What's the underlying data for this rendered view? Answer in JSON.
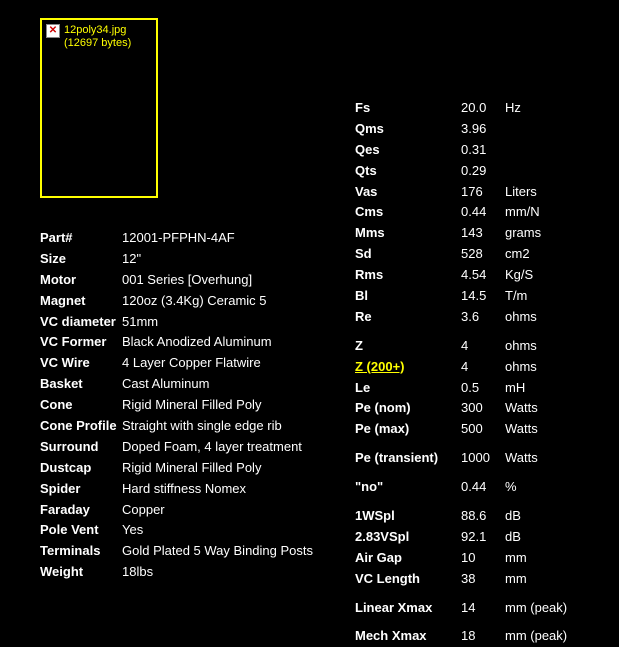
{
  "image": {
    "filename": "12poly34.jpg",
    "size_text": "(12697 bytes)"
  },
  "specs_left": [
    {
      "label": "Part#",
      "value": "12001-PFPHN-4AF"
    },
    {
      "label": "Size",
      "value": "12\""
    },
    {
      "label": "Motor",
      "value": "001 Series [Overhung]"
    },
    {
      "label": "Magnet",
      "value": "120oz (3.4Kg) Ceramic 5"
    },
    {
      "label": "VC diameter",
      "value": "51mm",
      "wrap_label": true
    },
    {
      "label": "VC Former",
      "value": "Black Anodized Aluminum"
    },
    {
      "label": "VC Wire",
      "value": "4 Layer Copper Flatwire"
    },
    {
      "label": "Basket",
      "value": "Cast Aluminum"
    },
    {
      "label": "Cone",
      "value": "Rigid Mineral Filled Poly"
    },
    {
      "label": "Cone Profile",
      "value": "Straight with single edge rib",
      "wrap_label": true
    },
    {
      "label": "Surround",
      "value": "Doped Foam, 4 layer treatment"
    },
    {
      "label": "Dustcap",
      "value": "Rigid Mineral Filled Poly"
    },
    {
      "label": "Spider",
      "value": "Hard stiffness Nomex"
    },
    {
      "label": "Faraday",
      "value": "Copper"
    },
    {
      "label": "Pole Vent",
      "value": "Yes"
    },
    {
      "label": "Terminals",
      "value": "Gold Plated 5 Way Binding Posts"
    },
    {
      "label": "Weight",
      "value": "18lbs"
    }
  ],
  "specs_right": [
    {
      "label": "Fs",
      "value": "20.0",
      "unit": "Hz"
    },
    {
      "label": "Qms",
      "value": "3.96",
      "unit": ""
    },
    {
      "label": "Qes",
      "value": "0.31",
      "unit": ""
    },
    {
      "label": "Qts",
      "value": "0.29",
      "unit": ""
    },
    {
      "label": "Vas",
      "value": "176",
      "unit": "Liters"
    },
    {
      "label": "Cms",
      "value": "0.44",
      "unit": "mm/N"
    },
    {
      "label": "Mms",
      "value": "143",
      "unit": "grams"
    },
    {
      "label": "Sd",
      "value": "528",
      "unit": "cm2"
    },
    {
      "label": "Rms",
      "value": "4.54",
      "unit": "Kg/S"
    },
    {
      "label": "Bl",
      "value": "14.5",
      "unit": "T/m"
    },
    {
      "label": "Re",
      "value": "3.6",
      "unit": "ohms"
    },
    {
      "label": "Z",
      "value": "4",
      "unit": "ohms",
      "spacer_before": true
    },
    {
      "label": "Z (200+)",
      "value": "4",
      "unit": "ohms",
      "link": true
    },
    {
      "label": "Le",
      "value": "0.5",
      "unit": "mH"
    },
    {
      "label": "Pe (nom)",
      "value": "300",
      "unit": "Watts"
    },
    {
      "label": "Pe (max)",
      "value": "500",
      "unit": "Watts"
    },
    {
      "label": "Pe (transient)",
      "value": "1000",
      "unit": "Watts",
      "spacer_before": true
    },
    {
      "label": "\"no\"",
      "value": "0.44",
      "unit": "%",
      "spacer_before": true
    },
    {
      "label": "1WSpl",
      "value": "88.6",
      "unit": "dB",
      "spacer_before": true
    },
    {
      "label": "2.83VSpl",
      "value": "92.1",
      "unit": "dB"
    },
    {
      "label": "Air Gap",
      "value": "10",
      "unit": "mm"
    },
    {
      "label": "VC Length",
      "value": "38",
      "unit": "mm"
    },
    {
      "label": "Linear Xmax",
      "value": "14",
      "unit": "mm (peak)",
      "spacer_before": true
    },
    {
      "label": "Mech Xmax",
      "value": "18",
      "unit": "mm (peak)",
      "spacer_before": true
    }
  ],
  "colors": {
    "background": "#000000",
    "text": "#ffffff",
    "accent": "#ffff00"
  }
}
